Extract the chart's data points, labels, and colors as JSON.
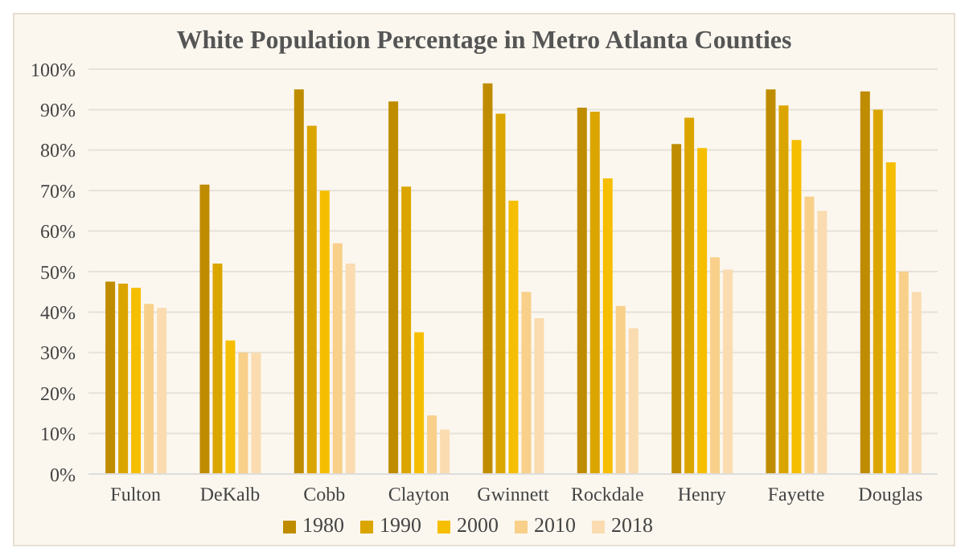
{
  "chart_data": {
    "type": "bar",
    "title": "White Population Percentage in Metro Atlanta Counties",
    "categories": [
      "Fulton",
      "DeKalb",
      "Cobb",
      "Clayton",
      "Gwinnett",
      "Rockdale",
      "Henry",
      "Fayette",
      "Douglas"
    ],
    "series": [
      {
        "name": "1980",
        "color": "#bf8c00",
        "values": [
          47.5,
          71.5,
          95,
          92,
          96.5,
          90.5,
          81.5,
          95,
          94.5
        ]
      },
      {
        "name": "1990",
        "color": "#dba500",
        "values": [
          47,
          52,
          86,
          71,
          89,
          89.5,
          88,
          91,
          90
        ]
      },
      {
        "name": "2000",
        "color": "#f6be00",
        "values": [
          46,
          33,
          70,
          35,
          67.5,
          73,
          80.5,
          82.5,
          77
        ]
      },
      {
        "name": "2010",
        "color": "#f8d08a",
        "values": [
          42,
          30,
          57,
          14.5,
          45,
          41.5,
          53.5,
          68.5,
          50
        ]
      },
      {
        "name": "2018",
        "color": "#fadcb0",
        "values": [
          41,
          30,
          52,
          11,
          38.5,
          36,
          50.5,
          65,
          45
        ]
      }
    ],
    "ylim": [
      0,
      100
    ],
    "yticks": [
      {
        "value": 0,
        "label": "0%"
      },
      {
        "value": 10,
        "label": "10%"
      },
      {
        "value": 20,
        "label": "20%"
      },
      {
        "value": 30,
        "label": "30%"
      },
      {
        "value": 40,
        "label": "40%"
      },
      {
        "value": 50,
        "label": "50%"
      },
      {
        "value": 60,
        "label": "60%"
      },
      {
        "value": 70,
        "label": "70%"
      },
      {
        "value": 80,
        "label": "80%"
      },
      {
        "value": 90,
        "label": "90%"
      },
      {
        "value": 100,
        "label": "100%"
      }
    ],
    "grid": "y",
    "legend": "bottom"
  }
}
